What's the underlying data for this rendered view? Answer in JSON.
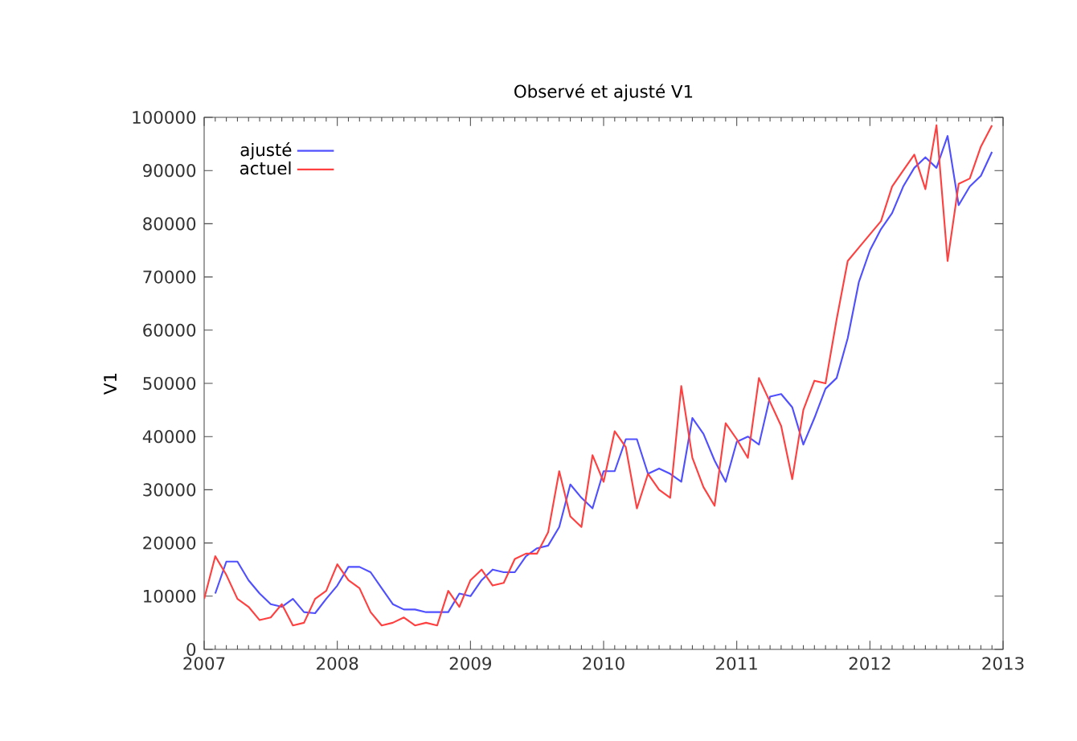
{
  "chart_data": {
    "type": "line",
    "title": "Observé et ajusté V1",
    "ylabel": "V1",
    "x": [
      "2007-01",
      "2007-02",
      "2007-03",
      "2007-04",
      "2007-05",
      "2007-06",
      "2007-07",
      "2007-08",
      "2007-09",
      "2007-10",
      "2007-11",
      "2007-12",
      "2008-01",
      "2008-02",
      "2008-03",
      "2008-04",
      "2008-05",
      "2008-06",
      "2008-07",
      "2008-08",
      "2008-09",
      "2008-10",
      "2008-11",
      "2008-12",
      "2009-01",
      "2009-02",
      "2009-03",
      "2009-04",
      "2009-05",
      "2009-06",
      "2009-07",
      "2009-08",
      "2009-09",
      "2009-10",
      "2009-11",
      "2009-12",
      "2010-01",
      "2010-02",
      "2010-03",
      "2010-04",
      "2010-05",
      "2010-06",
      "2010-07",
      "2010-08",
      "2010-09",
      "2010-10",
      "2010-11",
      "2010-12",
      "2011-01",
      "2011-02",
      "2011-03",
      "2011-04",
      "2011-05",
      "2011-06",
      "2011-07",
      "2011-08",
      "2011-09",
      "2011-10",
      "2011-11",
      "2011-12",
      "2012-01",
      "2012-02",
      "2012-03",
      "2012-04",
      "2012-05",
      "2012-06",
      "2012-07",
      "2012-08",
      "2012-09",
      "2012-10",
      "2012-11",
      "2012-12"
    ],
    "series": [
      {
        "name": "ajusté",
        "color": "#5050ff",
        "values": [
          null,
          10500,
          16500,
          16500,
          13000,
          10500,
          8500,
          8000,
          9500,
          7000,
          6800,
          9500,
          12000,
          15500,
          15500,
          14500,
          11500,
          8500,
          7500,
          7500,
          7000,
          7000,
          7000,
          10500,
          10000,
          13000,
          15000,
          14500,
          14500,
          17500,
          19000,
          19500,
          23000,
          31000,
          28500,
          26500,
          33500,
          33500,
          39500,
          39500,
          33000,
          34000,
          33000,
          31500,
          43500,
          40500,
          35500,
          31500,
          39000,
          40000,
          38500,
          47500,
          48000,
          45500,
          38500,
          43500,
          49000,
          51000,
          58500,
          69000,
          75000,
          79000,
          82000,
          87000,
          90500,
          92500,
          90500,
          96500,
          83500,
          87000,
          89000,
          93500
        ]
      },
      {
        "name": "actuel",
        "color": "#ff4040",
        "values": [
          9500,
          17500,
          14000,
          9500,
          8000,
          5500,
          6000,
          8500,
          4500,
          5000,
          9500,
          11000,
          16000,
          13000,
          11500,
          7000,
          4500,
          5000,
          6000,
          4500,
          5000,
          4500,
          11000,
          8000,
          13000,
          15000,
          12000,
          12500,
          17000,
          18000,
          18000,
          22000,
          33500,
          25000,
          23000,
          36500,
          31500,
          41000,
          38000,
          26500,
          33000,
          30000,
          28500,
          49500,
          36000,
          30500,
          27000,
          42500,
          39500,
          36000,
          51000,
          46500,
          42000,
          32000,
          45000,
          50500,
          50000,
          62000,
          73000,
          75500,
          78000,
          80500,
          87000,
          90000,
          93000,
          86500,
          98500,
          73000,
          87500,
          88500,
          94500,
          98500
        ]
      }
    ],
    "xlim": [
      "2007",
      "2013"
    ],
    "xticks": [
      "2007",
      "2008",
      "2009",
      "2010",
      "2011",
      "2012",
      "2013"
    ],
    "ylim": [
      0,
      100000
    ],
    "yticks": [
      0,
      10000,
      20000,
      30000,
      40000,
      50000,
      60000,
      70000,
      80000,
      90000,
      100000
    ],
    "legend": "top left",
    "line_style": "solid",
    "marker": "none"
  }
}
